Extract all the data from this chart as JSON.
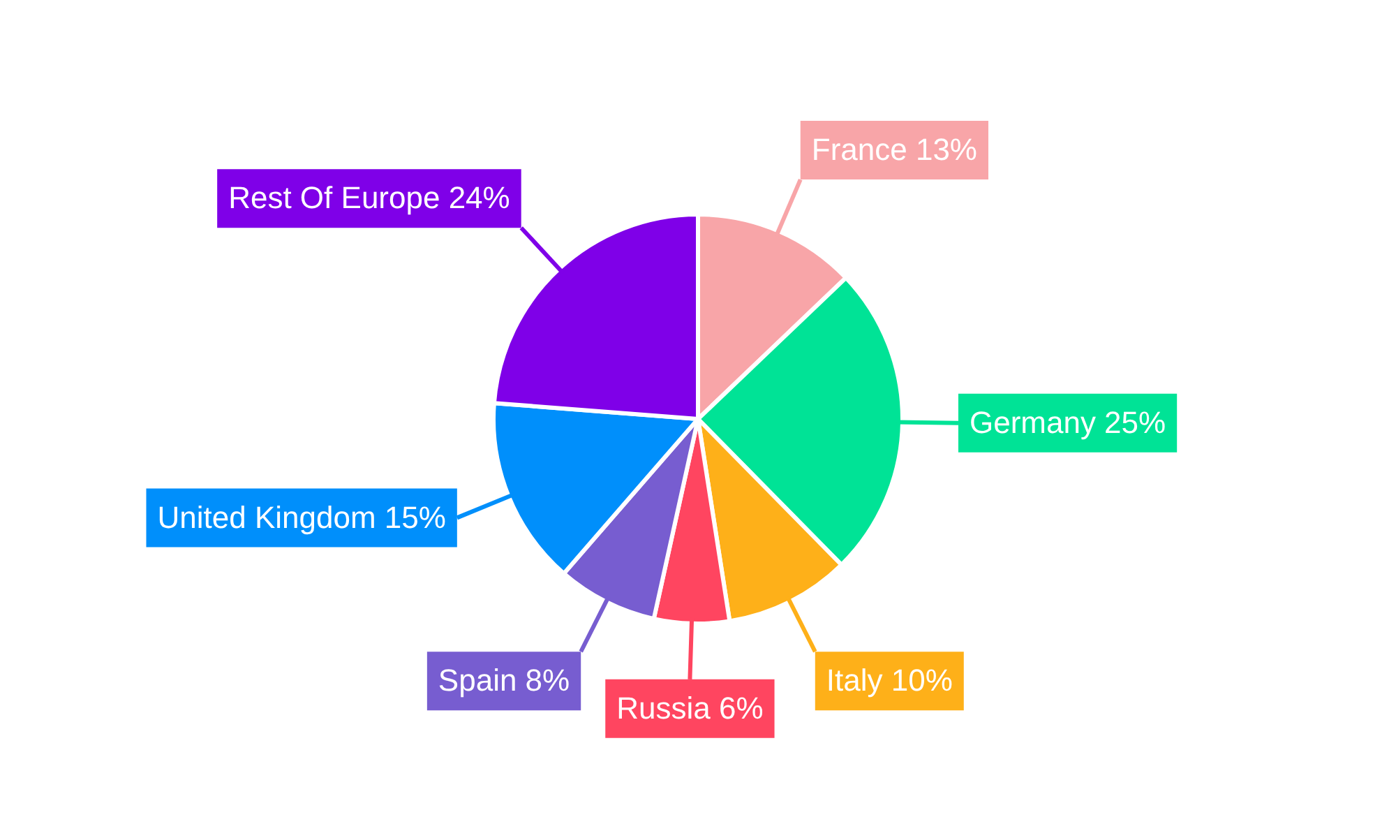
{
  "chart_data": {
    "type": "pie",
    "categories": [
      "France",
      "Germany",
      "Italy",
      "Russia",
      "Spain",
      "United Kingdom",
      "Rest Of Europe"
    ],
    "values": [
      13,
      25,
      10,
      6,
      8,
      15,
      24
    ],
    "value_labels": [
      "13%",
      "25%",
      "10%",
      "6%",
      "8%",
      "15%",
      "24%"
    ],
    "colors": [
      "#f8a5a8",
      "#00e396",
      "#feb019",
      "#ff4560",
      "#775dd0",
      "#008ffb",
      "#7f00e8"
    ],
    "legend": false
  }
}
